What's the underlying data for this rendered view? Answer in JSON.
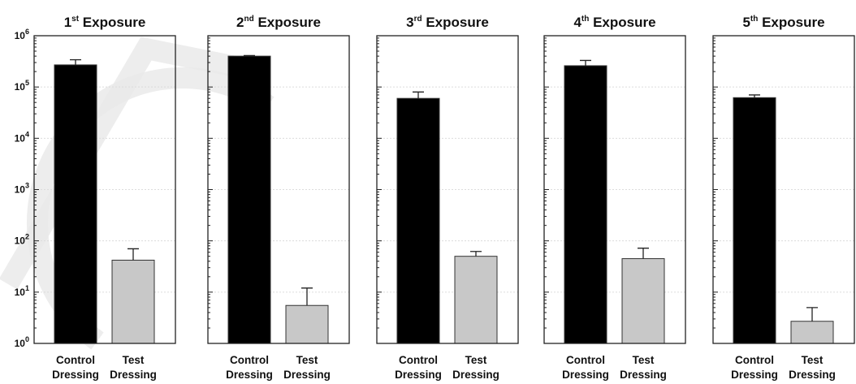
{
  "chart_data": [
    {
      "type": "bar",
      "title": "Exposure",
      "title_number": "1",
      "title_suffix": "st",
      "categories": [
        "Control Dressing",
        "Test Dressing"
      ],
      "category_lines": [
        [
          "Control",
          "Dressing"
        ],
        [
          "Test",
          "Dressing"
        ]
      ],
      "values": [
        270000,
        42
      ],
      "error_upper": [
        340000,
        70
      ],
      "colors": [
        "#000000",
        "#c8c8c8"
      ],
      "yscale": "log",
      "ylim": [
        1,
        1000000
      ],
      "ytick_base": "10",
      "ytick_exponents": [
        "0",
        "1",
        "2",
        "3",
        "4",
        "5",
        "6"
      ],
      "show_tick_labels": true,
      "grid": true
    },
    {
      "type": "bar",
      "title": "Exposure",
      "title_number": "2",
      "title_suffix": "nd",
      "categories": [
        "Control Dressing",
        "Test Dressing"
      ],
      "category_lines": [
        [
          "Control",
          "Dressing"
        ],
        [
          "Test",
          "Dressing"
        ]
      ],
      "values": [
        400000,
        5.5
      ],
      "error_upper": [
        410000,
        12
      ],
      "colors": [
        "#000000",
        "#c8c8c8"
      ],
      "yscale": "log",
      "ylim": [
        1,
        1000000
      ],
      "show_tick_labels": false,
      "grid": true
    },
    {
      "type": "bar",
      "title": "Exposure",
      "title_number": "3",
      "title_suffix": "rd",
      "categories": [
        "Control Dressing",
        "Test Dressing"
      ],
      "category_lines": [
        [
          "Control",
          "Dressing"
        ],
        [
          "Test",
          "Dressing"
        ]
      ],
      "values": [
        60000,
        50
      ],
      "error_upper": [
        80000,
        62
      ],
      "colors": [
        "#000000",
        "#c8c8c8"
      ],
      "yscale": "log",
      "ylim": [
        1,
        1000000
      ],
      "show_tick_labels": false,
      "grid": true
    },
    {
      "type": "bar",
      "title": "Exposure",
      "title_number": "4",
      "title_suffix": "th",
      "categories": [
        "Control Dressing",
        "Test Dressing"
      ],
      "category_lines": [
        [
          "Control",
          "Dressing"
        ],
        [
          "Test",
          "Dressing"
        ]
      ],
      "values": [
        260000,
        45
      ],
      "error_upper": [
        330000,
        72
      ],
      "colors": [
        "#000000",
        "#c8c8c8"
      ],
      "yscale": "log",
      "ylim": [
        1,
        1000000
      ],
      "show_tick_labels": false,
      "grid": true
    },
    {
      "type": "bar",
      "title": "Exposure",
      "title_number": "5",
      "title_suffix": "th",
      "categories": [
        "Control Dressing",
        "Test Dressing"
      ],
      "category_lines": [
        [
          "Control",
          "Dressing"
        ],
        [
          "Test",
          "Dressing"
        ]
      ],
      "values": [
        62000,
        2.7
      ],
      "error_upper": [
        70000,
        5
      ],
      "colors": [
        "#000000",
        "#c8c8c8"
      ],
      "yscale": "log",
      "ylim": [
        1,
        1000000
      ],
      "show_tick_labels": false,
      "grid": true
    }
  ]
}
